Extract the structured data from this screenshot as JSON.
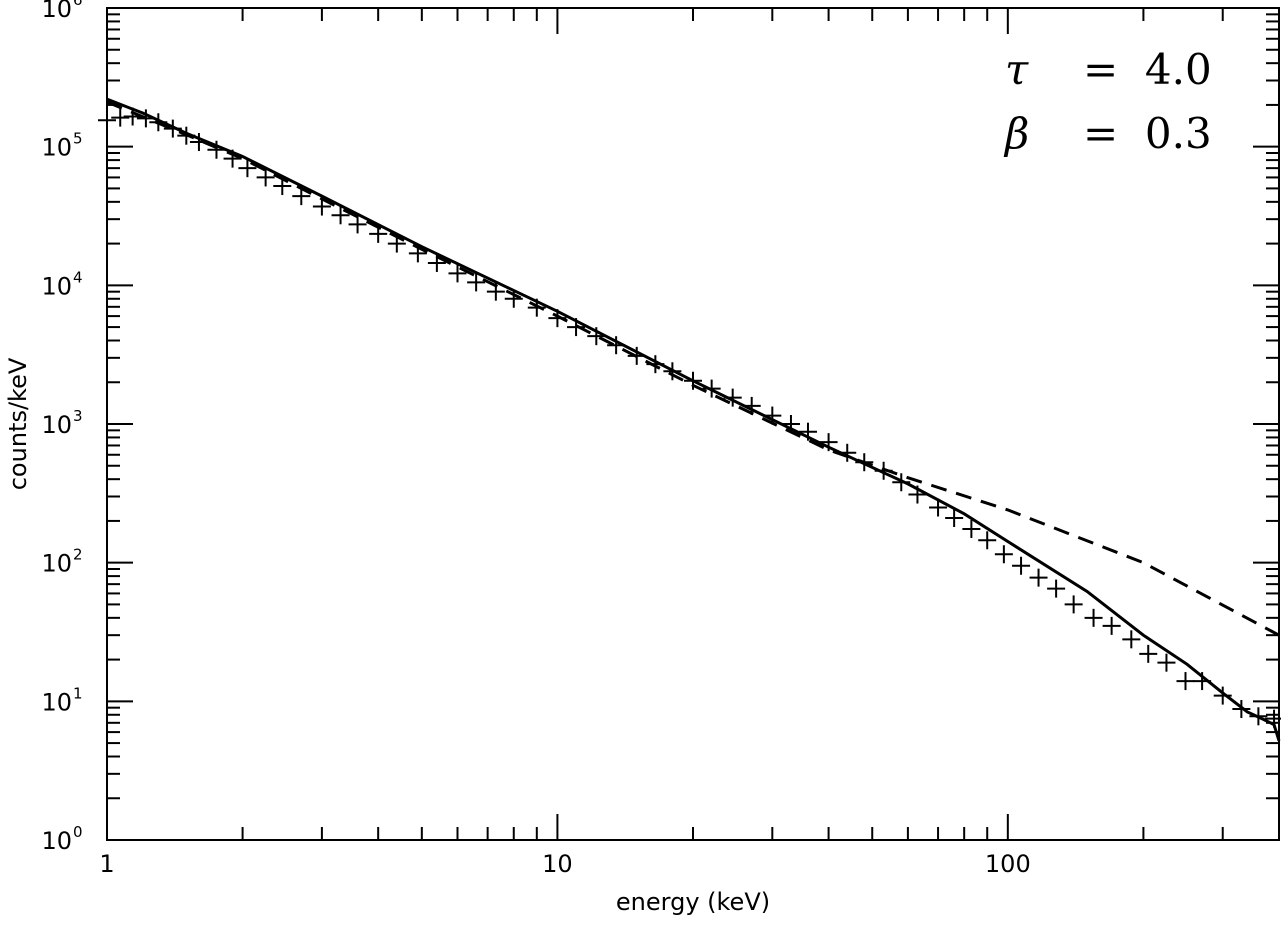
{
  "chart_data": {
    "type": "scatter",
    "title": "",
    "xlabel": "energy (keV)",
    "ylabel": "counts/keV",
    "xscale": "log",
    "yscale": "log",
    "xlim": [
      1,
      400
    ],
    "ylim": [
      1,
      1000000
    ],
    "grid": false,
    "x_tick_labels": [
      "1",
      "10",
      "100"
    ],
    "y_tick_labels": [
      {
        "base": "10",
        "exp": "0"
      },
      {
        "base": "10",
        "exp": "1"
      },
      {
        "base": "10",
        "exp": "2"
      },
      {
        "base": "10",
        "exp": "3"
      },
      {
        "base": "10",
        "exp": "4"
      },
      {
        "base": "10",
        "exp": "5"
      },
      {
        "base": "10",
        "exp": "6"
      }
    ],
    "annotations": [
      {
        "symbol": "τ",
        "text": "=  4.0"
      },
      {
        "symbol": "β",
        "text": "=  0.3"
      }
    ],
    "series": [
      {
        "style": "plus-markers",
        "x": [
          1.0,
          1.07,
          1.14,
          1.22,
          1.3,
          1.4,
          1.5,
          1.6,
          1.75,
          1.9,
          2.05,
          2.25,
          2.45,
          2.7,
          3.0,
          3.3,
          3.6,
          4.0,
          4.4,
          4.9,
          5.4,
          6.0,
          6.6,
          7.3,
          8.0,
          9.0,
          10.0,
          11.0,
          12.2,
          13.5,
          15.0,
          16.5,
          18.0,
          20.0,
          22.0,
          24.5,
          27.0,
          30.0,
          33.0,
          36.0,
          40.0,
          44.0,
          48.0,
          53.0,
          58.0,
          63.0,
          70.0,
          76.0,
          83.0,
          90.0,
          98.0,
          107.0,
          117.0,
          128.0,
          140.0,
          155.0,
          170.0,
          188.0,
          205.0,
          225.0,
          248.0,
          270.0,
          300.0,
          330.0,
          360.0,
          390.0
        ],
        "y": [
          155000,
          162000,
          165000,
          160000,
          150000,
          135000,
          120000,
          108000,
          95000,
          82000,
          70000,
          60000,
          52000,
          44000,
          37000,
          32000,
          27500,
          23500,
          20000,
          17000,
          14500,
          12200,
          10500,
          9000,
          8000,
          6900,
          5800,
          5000,
          4300,
          3700,
          3100,
          2700,
          2400,
          2050,
          1800,
          1550,
          1350,
          1150,
          1000,
          880,
          740,
          620,
          530,
          460,
          380,
          310,
          250,
          210,
          175,
          145,
          115,
          95,
          78,
          65,
          50,
          40,
          35,
          28,
          22,
          19,
          14,
          14,
          11,
          8.8,
          7.8,
          7.5
        ]
      },
      {
        "style": "solid-line",
        "x": [
          1.0,
          1.2,
          1.5,
          2.0,
          3.0,
          5.0,
          10.0,
          20.0,
          40.0,
          60.0,
          80.0,
          100.0,
          150.0,
          200.0,
          250.0,
          300.0,
          340.0,
          370.0,
          390.0,
          400.0
        ],
        "y": [
          220000,
          175000,
          125000,
          85000,
          44000,
          19000,
          6500,
          2050,
          680,
          370,
          225,
          142,
          62,
          30,
          18.5,
          11.5,
          8.4,
          7.4,
          6.8,
          5.2
        ]
      },
      {
        "style": "dashed-line",
        "x": [
          1.0,
          1.5,
          2.0,
          3.0,
          5.0,
          10.0,
          20.0,
          40.0,
          60.0,
          100.0,
          200.0,
          400.0
        ],
        "y": [
          210000,
          122000,
          82000,
          42000,
          18200,
          6000,
          1900,
          650,
          410,
          240,
          100,
          30
        ]
      }
    ]
  }
}
